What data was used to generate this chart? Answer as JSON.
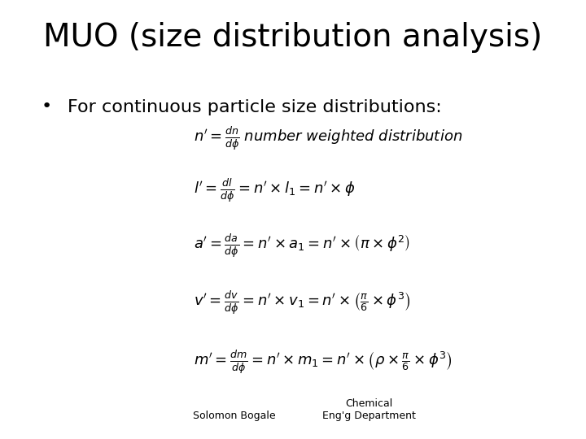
{
  "title": "MUO (size distribution analysis)",
  "bullet": "For continuous particle size distributions:",
  "equations": [
    "n' = \\frac{dn}{d\\phi} \\; \\mathit{number\\ weighted\\ distribution}",
    "l' = \\frac{dl}{d\\phi} = n' \\times l_1 = n' \\times \\phi",
    "a' = \\frac{da}{d\\phi} = n' \\times a_1 = n' \\times \\left(\\pi \\times \\phi^2\\right)",
    "v' = \\frac{dv}{d\\phi} = n' \\times v_1 = n' \\times \\left(\\frac{\\pi}{6} \\times \\phi^3\\right)",
    "m' = \\frac{dm}{d\\phi} = n' \\times m_1 = n' \\times \\left(\\rho \\times \\frac{\\pi}{6} \\times \\phi^3\\right)"
  ],
  "footer_left": "Solomon Bogale",
  "footer_right": "Chemical\nEng'g Department",
  "background_color": "#ffffff",
  "title_fontsize": 28,
  "bullet_fontsize": 16,
  "eq_fontsize": 13,
  "footer_fontsize": 9
}
